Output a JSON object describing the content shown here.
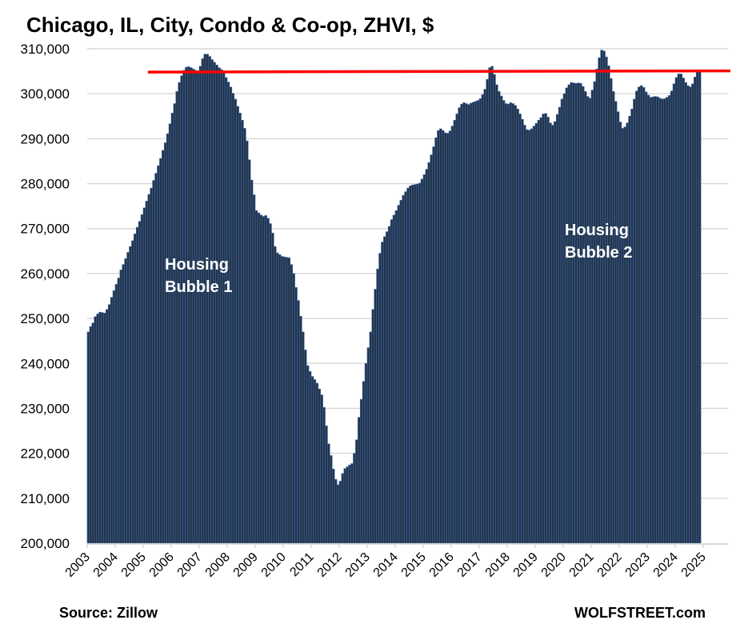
{
  "chart_data": {
    "type": "bar",
    "title": "Chicago, IL, City, Condo & Co-op, ZHVI,  $",
    "xlabel": "",
    "ylabel": "",
    "ylim": [
      200000,
      310000
    ],
    "yticks": [
      200000,
      210000,
      220000,
      230000,
      240000,
      250000,
      260000,
      270000,
      280000,
      290000,
      300000,
      310000
    ],
    "ytick_labels": [
      "200,000",
      "210,000",
      "220,000",
      "230,000",
      "240,000",
      "250,000",
      "260,000",
      "270,000",
      "280,000",
      "290,000",
      "300,000",
      "310,000"
    ],
    "xtick_labels": [
      "2003",
      "2004",
      "2005",
      "2006",
      "2007",
      "2008",
      "2009",
      "2010",
      "2011",
      "2012",
      "2013",
      "2014",
      "2015",
      "2016",
      "2017",
      "2018",
      "2019",
      "2020",
      "2021",
      "2022",
      "2023",
      "2024",
      "2025"
    ],
    "start": "2003-01",
    "frequency": "monthly",
    "grid": true,
    "colors": {
      "bar": "#243447",
      "bar_edge": "#3a66a8",
      "reference_line": "#ff0000",
      "grid": "#d9d9d9"
    },
    "reference_line": {
      "value": 305000,
      "from": "2005-03",
      "label": ""
    },
    "annotations": [
      {
        "text_line1": "Housing",
        "text_line2": "Bubble 1",
        "x": "2006-04",
        "y": 261000
      },
      {
        "text_line1": "Housing",
        "text_line2": "Bubble 2",
        "x": "2020-01",
        "y": 271000
      }
    ],
    "values": [
      247000,
      248200,
      249000,
      250400,
      251000,
      251400,
      251300,
      251200,
      252000,
      253100,
      254700,
      256200,
      257600,
      259000,
      260800,
      262000,
      263300,
      264700,
      266000,
      267300,
      268800,
      270300,
      271600,
      273100,
      274600,
      276100,
      277600,
      279000,
      280700,
      282300,
      284000,
      285600,
      287400,
      289100,
      291100,
      293300,
      295700,
      297800,
      300500,
      302500,
      304000,
      305200,
      305900,
      306000,
      305800,
      305500,
      305200,
      305000,
      306100,
      307800,
      308800,
      308800,
      308300,
      307600,
      307000,
      306400,
      305800,
      305400,
      304700,
      303600,
      302600,
      301500,
      300100,
      298800,
      297200,
      295700,
      294100,
      292300,
      289500,
      285300,
      280800,
      277500,
      274000,
      273500,
      273000,
      272700,
      272900,
      272300,
      271100,
      269000,
      266000,
      264600,
      264200,
      263800,
      263700,
      263600,
      263500,
      262000,
      260000,
      256900,
      254000,
      250500,
      247000,
      243000,
      239500,
      238200,
      237100,
      236400,
      235600,
      234300,
      233000,
      230200,
      226100,
      222100,
      219500,
      216500,
      214200,
      213000,
      213800,
      215500,
      216600,
      217000,
      217400,
      217700,
      220000,
      223000,
      228000,
      232000,
      236000,
      240000,
      243500,
      247000,
      252000,
      256500,
      261000,
      264500,
      267000,
      268200,
      269300,
      270500,
      272000,
      273000,
      274000,
      275200,
      276300,
      277400,
      278200,
      279000,
      279500,
      279700,
      279800,
      279900,
      280100,
      281000,
      282000,
      283200,
      284700,
      286400,
      288200,
      290200,
      291800,
      292200,
      291800,
      291300,
      291200,
      291700,
      292800,
      294100,
      295500,
      296900,
      297700,
      298000,
      297800,
      297600,
      297900,
      298100,
      298300,
      298500,
      298900,
      299800,
      301000,
      303200,
      305800,
      306100,
      304300,
      302000,
      300500,
      299500,
      298500,
      297800,
      297700,
      298000,
      297800,
      297400,
      296600,
      295500,
      294300,
      293000,
      292000,
      291900,
      292200,
      292800,
      293400,
      294100,
      294700,
      295500,
      295600,
      294800,
      293500,
      293000,
      293800,
      295400,
      297000,
      298800,
      300000,
      301300,
      302000,
      302500,
      302400,
      302300,
      302400,
      302300,
      301600,
      300500,
      299400,
      299000,
      300800,
      302700,
      305500,
      308000,
      309700,
      309500,
      308200,
      306200,
      303400,
      300500,
      298300,
      296000,
      293700,
      292300,
      292600,
      293500,
      295000,
      296600,
      298800,
      300600,
      301500,
      301800,
      301400,
      300400,
      299700,
      299200,
      299300,
      299400,
      299300,
      299000,
      298800,
      298900,
      299200,
      299600,
      300600,
      302200,
      303600,
      304400,
      304400,
      303500,
      302500,
      301800,
      301500,
      302200,
      303700,
      304800,
      305300
    ]
  },
  "footer": {
    "source": "Source: Zillow",
    "brand": "WOLFSTREET.com"
  }
}
